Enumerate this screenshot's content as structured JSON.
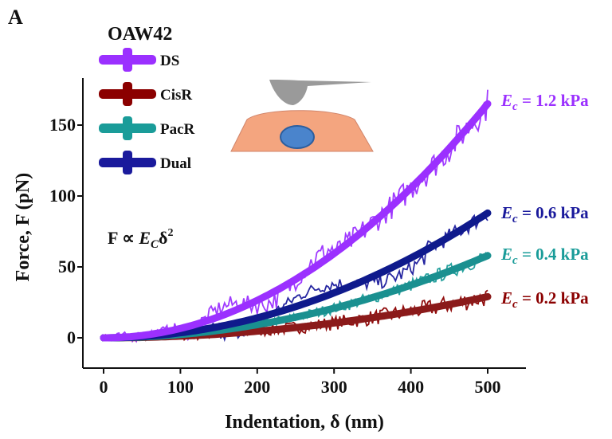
{
  "panel_label": "A",
  "chart_data": {
    "type": "line",
    "title": "OAW42",
    "xlabel": "Indentation, δ (nm)",
    "ylabel": "Force, F (pN)",
    "xlim": [
      -20,
      550
    ],
    "ylim": [
      -12,
      175
    ],
    "xticks": [
      0,
      100,
      200,
      300,
      400,
      500
    ],
    "yticks": [
      0,
      50,
      100,
      150
    ],
    "legend_position": "top-left",
    "relation": "F ∝ E_C δ²",
    "series": [
      {
        "name": "DS",
        "color": "#9b30ff",
        "fit_color": "#9b30ff",
        "Ec_label": "= 1.2 kPa",
        "x_end": 500,
        "y_end": 165
      },
      {
        "name": "CisR",
        "color": "#8b0000",
        "fit_color": "#8b1a1a",
        "Ec_label": "= 0.2 kPa",
        "x_end": 500,
        "y_end": 29
      },
      {
        "name": "PacR",
        "color": "#1a9c99",
        "fit_color": "#1a9090",
        "Ec_label": "= 0.4 kPa",
        "x_end": 500,
        "y_end": 58
      },
      {
        "name": "Dual",
        "color": "#1a1a9c",
        "fit_color": "#0f1a8c",
        "Ec_label": "= 0.6 kPa",
        "x_end": 500,
        "y_end": 88
      }
    ],
    "annotations": {
      "Ec_symbol": "E",
      "Ec_subscript": "c",
      "relation_lhs": "F ∝ ",
      "relation_E": "E",
      "relation_sub": "C",
      "relation_rest": "δ",
      "relation_sup": "2"
    }
  }
}
